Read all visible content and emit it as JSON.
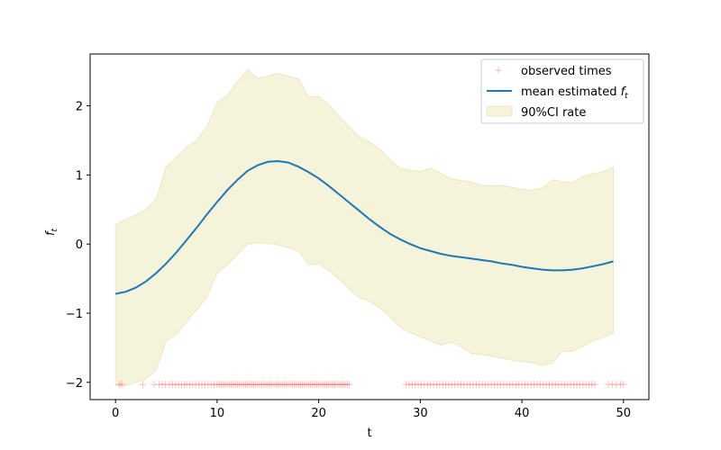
{
  "chart_data": {
    "type": "line",
    "xlabel": "t",
    "ylabel_base": "f",
    "ylabel_sub": "t",
    "xlim": [
      -2.5,
      52.5
    ],
    "ylim": [
      -2.25,
      2.75
    ],
    "xticks": [
      0,
      10,
      20,
      30,
      40,
      50
    ],
    "yticks": [
      -2,
      -1,
      0,
      1,
      2
    ],
    "ytick_labels": [
      "−2",
      "−1",
      "0",
      "1",
      "2"
    ],
    "grid": false,
    "legend": {
      "placement": "top-right",
      "entries": [
        {
          "key": "observed",
          "label": "observed times"
        },
        {
          "key": "mean",
          "label_prefix": "mean estimated ",
          "label_base": "f",
          "label_sub": "t"
        },
        {
          "key": "ci",
          "label": "90%CI rate"
        }
      ]
    },
    "colors": {
      "mean": "#1f77b4",
      "ci_fill": "#f5f3d9",
      "ci_edge": "#ece8c2",
      "observed": "#ff0000",
      "axes": "#000000"
    },
    "mean_series": {
      "name": "mean estimated f_t",
      "x": [
        0,
        1,
        2,
        3,
        4,
        5,
        6,
        7,
        8,
        9,
        10,
        11,
        12,
        13,
        14,
        15,
        16,
        17,
        18,
        19,
        20,
        21,
        22,
        23,
        24,
        25,
        26,
        27,
        28,
        29,
        30,
        31,
        32,
        33,
        34,
        35,
        36,
        37,
        38,
        39,
        40,
        41,
        42,
        43,
        44,
        45,
        46,
        47,
        48,
        49
      ],
      "y": [
        -0.72,
        -0.69,
        -0.63,
        -0.54,
        -0.42,
        -0.28,
        -0.12,
        0.06,
        0.24,
        0.43,
        0.61,
        0.78,
        0.93,
        1.06,
        1.14,
        1.19,
        1.2,
        1.18,
        1.12,
        1.04,
        0.95,
        0.84,
        0.72,
        0.6,
        0.48,
        0.36,
        0.25,
        0.15,
        0.07,
        0.0,
        -0.06,
        -0.1,
        -0.14,
        -0.17,
        -0.19,
        -0.21,
        -0.23,
        -0.25,
        -0.28,
        -0.3,
        -0.33,
        -0.35,
        -0.37,
        -0.38,
        -0.38,
        -0.37,
        -0.35,
        -0.32,
        -0.29,
        -0.25
      ]
    },
    "ci_band": {
      "name": "90%CI rate",
      "x": [
        0,
        1,
        2,
        3,
        4,
        5,
        6,
        7,
        8,
        9,
        10,
        11,
        12,
        13,
        14,
        15,
        16,
        17,
        18,
        19,
        20,
        21,
        22,
        23,
        24,
        25,
        26,
        27,
        28,
        29,
        30,
        31,
        32,
        33,
        34,
        35,
        36,
        37,
        38,
        39,
        40,
        41,
        42,
        43,
        44,
        45,
        46,
        47,
        48,
        49
      ],
      "upper": [
        0.28,
        0.36,
        0.42,
        0.5,
        0.65,
        1.12,
        1.25,
        1.4,
        1.5,
        1.7,
        2.05,
        2.15,
        2.35,
        2.52,
        2.4,
        2.43,
        2.47,
        2.43,
        2.39,
        2.13,
        2.13,
        2.02,
        1.85,
        1.7,
        1.55,
        1.48,
        1.38,
        1.22,
        1.1,
        1.07,
        1.05,
        1.1,
        1.03,
        0.95,
        0.92,
        0.9,
        0.85,
        0.84,
        0.85,
        0.82,
        0.79,
        0.78,
        0.81,
        0.93,
        0.9,
        0.89,
        0.98,
        1.02,
        1.05,
        1.11
      ],
      "lower": [
        -2.05,
        -2.05,
        -2.0,
        -1.95,
        -1.82,
        -1.4,
        -1.3,
        -1.12,
        -0.95,
        -0.76,
        -0.42,
        -0.3,
        -0.15,
        0.0,
        0.02,
        0.01,
        -0.01,
        -0.05,
        -0.1,
        -0.3,
        -0.28,
        -0.38,
        -0.51,
        -0.65,
        -0.78,
        -0.83,
        -0.92,
        -1.05,
        -1.2,
        -1.28,
        -1.34,
        -1.4,
        -1.46,
        -1.42,
        -1.48,
        -1.58,
        -1.6,
        -1.62,
        -1.65,
        -1.68,
        -1.7,
        -1.72,
        -1.76,
        -1.72,
        -1.55,
        -1.55,
        -1.48,
        -1.4,
        -1.35,
        -1.28
      ]
    },
    "observed_times": {
      "name": "observed times",
      "y": -2.03,
      "x": [
        0.4,
        0.6,
        2.7,
        3.8,
        4.3,
        4.6,
        4.9,
        5.3,
        5.6,
        5.9,
        6.2,
        6.5,
        6.8,
        7.0,
        7.3,
        7.6,
        7.9,
        8.2,
        8.5,
        8.8,
        9.1,
        9.4,
        9.7,
        10.0,
        10.2,
        10.4,
        10.6,
        10.8,
        11.0,
        11.2,
        11.4,
        11.6,
        11.8,
        12.0,
        12.2,
        12.4,
        12.6,
        12.8,
        13.0,
        13.2,
        13.4,
        13.6,
        13.8,
        14.0,
        14.2,
        14.4,
        14.6,
        14.8,
        15.0,
        15.2,
        15.4,
        15.6,
        15.8,
        16.0,
        16.2,
        16.4,
        16.6,
        16.8,
        17.0,
        17.2,
        17.4,
        17.6,
        17.8,
        18.0,
        18.2,
        18.4,
        18.6,
        18.8,
        19.0,
        19.2,
        19.4,
        19.6,
        19.8,
        20.0,
        20.2,
        20.4,
        20.6,
        20.8,
        21.0,
        21.2,
        21.4,
        21.6,
        21.8,
        22.0,
        22.2,
        22.4,
        22.6,
        22.8,
        23.0,
        28.6,
        28.9,
        29.2,
        29.5,
        29.8,
        30.1,
        30.4,
        30.7,
        31.0,
        31.3,
        31.6,
        31.9,
        32.2,
        32.5,
        32.8,
        33.1,
        33.4,
        33.7,
        34.0,
        34.3,
        34.6,
        34.9,
        35.2,
        35.5,
        35.8,
        36.1,
        36.4,
        36.7,
        37.0,
        37.3,
        37.6,
        37.9,
        38.2,
        38.5,
        38.8,
        39.1,
        39.4,
        39.7,
        40.0,
        40.3,
        40.6,
        40.9,
        41.2,
        41.5,
        41.8,
        42.1,
        42.4,
        42.7,
        43.0,
        43.3,
        43.6,
        43.9,
        44.2,
        44.5,
        44.8,
        45.1,
        45.4,
        45.7,
        46.0,
        46.3,
        46.6,
        46.9,
        47.2,
        48.5,
        48.9,
        49.3,
        49.7,
        50.0
      ]
    }
  }
}
